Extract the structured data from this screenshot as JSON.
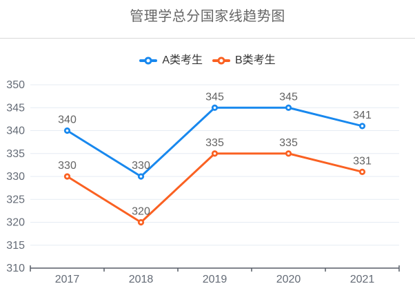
{
  "chart_data": {
    "type": "line",
    "title": "管理学总分国家线趋势图",
    "categories": [
      "2017",
      "2018",
      "2019",
      "2020",
      "2021"
    ],
    "series": [
      {
        "name": "A类考生",
        "color": "#1888ee",
        "values": [
          340,
          330,
          345,
          345,
          341
        ]
      },
      {
        "name": "B类考生",
        "color": "#fa6122",
        "values": [
          330,
          320,
          335,
          335,
          331
        ]
      }
    ],
    "ylim": [
      310,
      350
    ],
    "y_interval": 5,
    "y_ticks": [
      310,
      315,
      320,
      325,
      330,
      335,
      340,
      345,
      350
    ],
    "xlabel": "",
    "ylabel": "",
    "grid": true,
    "legend_position": "top",
    "marker": "hollow-circle",
    "data_labels": true,
    "style": {
      "background": "#ffffff",
      "grid_line": "#e6ebf3",
      "axis_line": "#565c66",
      "axis_label": "#646b76",
      "data_label": "#636363",
      "title_color": "#666666",
      "legend_text": "#333333",
      "divider": "#d9d9d9"
    }
  }
}
